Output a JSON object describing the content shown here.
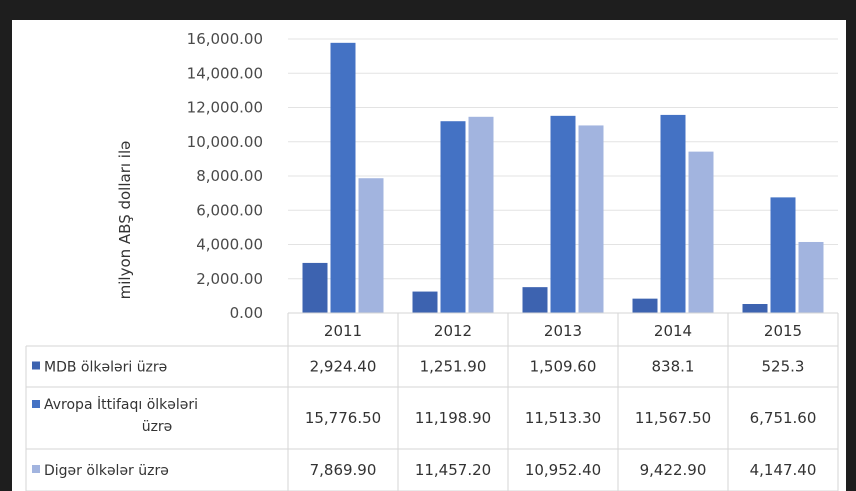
{
  "chart_data": {
    "type": "bar",
    "categories": [
      "2011",
      "2012",
      "2013",
      "2014",
      "2015"
    ],
    "ylabel": "milyon ABŞ dolları ilə",
    "ylim": [
      0,
      16000
    ],
    "yticks": [
      "0.00",
      "2,000.00",
      "4,000.00",
      "6,000.00",
      "8,000.00",
      "10,000.00",
      "12,000.00",
      "14,000.00",
      "16,000.00"
    ],
    "grid": true,
    "legend": "data-table",
    "series": [
      {
        "name": "MDB ölkələri üzrə",
        "color": "#3d63b0",
        "values": [
          2924.4,
          1251.9,
          1509.6,
          838.1,
          525.3
        ],
        "labels": [
          "2,924.40",
          "1,251.90",
          "1,509.60",
          "838.1",
          "525.3"
        ]
      },
      {
        "name": "Avropa İttifaqı ölkələri üzrə",
        "color": "#4472c4",
        "values": [
          15776.5,
          11198.9,
          11513.3,
          11567.5,
          6751.6
        ],
        "labels": [
          "15,776.50",
          "11,198.90",
          "11,513.30",
          "11,567.50",
          "6,751.60"
        ]
      },
      {
        "name": "Digər ölkələr üzrə",
        "color": "#a2b4df",
        "values": [
          7869.9,
          11457.2,
          10952.4,
          9422.9,
          4147.4
        ],
        "labels": [
          "7,869.90",
          "11,457.20",
          "10,952.40",
          "9,422.90",
          "4,147.40"
        ]
      }
    ]
  }
}
